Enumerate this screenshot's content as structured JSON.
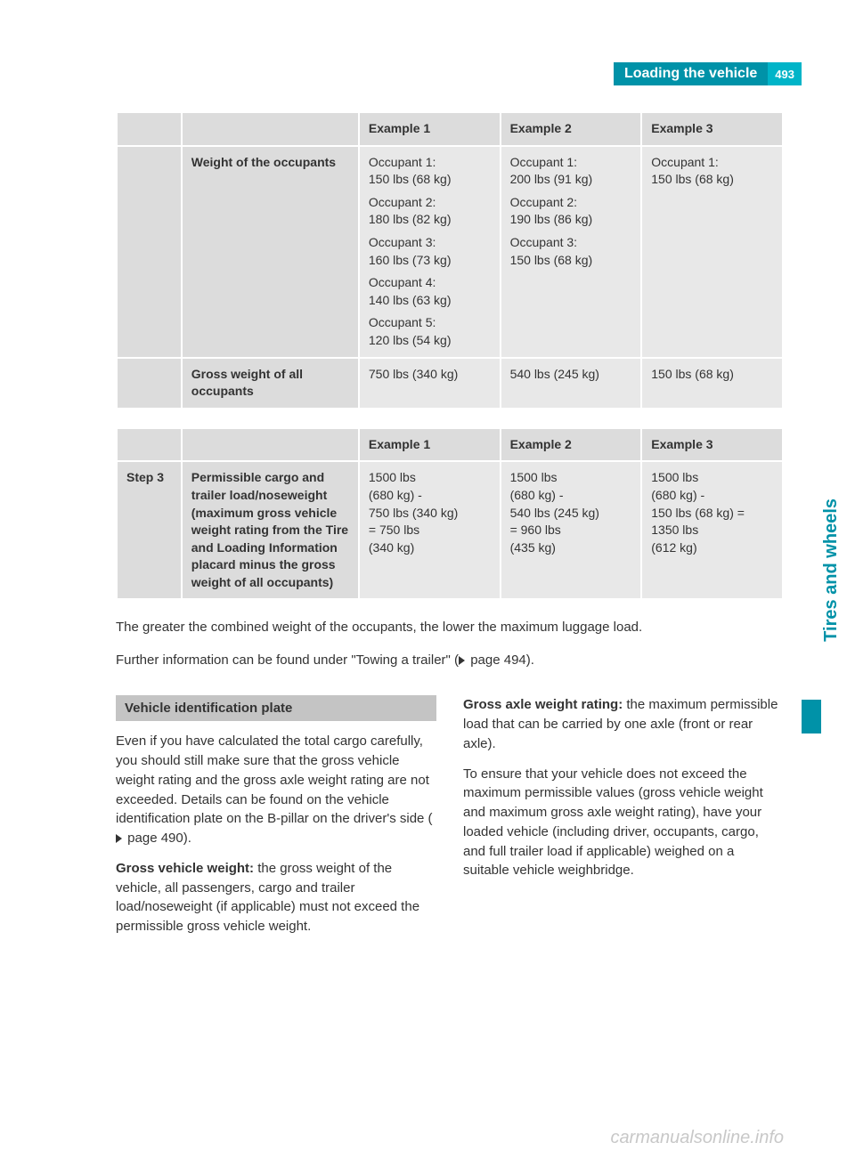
{
  "header": {
    "title": "Loading the vehicle",
    "page_number": "493"
  },
  "side_tab": "Tires and wheels",
  "table1": {
    "headers": [
      "",
      "",
      "Example 1",
      "Example 2",
      "Example 3"
    ],
    "rows": [
      {
        "step": "",
        "label": "Weight of the occupants",
        "ex1": [
          "Occupant 1:\n150 lbs (68 kg)",
          "Occupant 2:\n180 lbs (82 kg)",
          "Occupant 3:\n160 lbs (73 kg)",
          "Occupant 4:\n140 lbs (63 kg)",
          "Occupant 5:\n120 lbs (54 kg)"
        ],
        "ex2": [
          "Occupant 1:\n200 lbs (91 kg)",
          "Occupant 2:\n190 lbs (86 kg)",
          "Occupant 3:\n150 lbs (68 kg)"
        ],
        "ex3": [
          "Occupant 1:\n150 lbs (68 kg)"
        ]
      },
      {
        "step": "",
        "label": "Gross weight of all occupants",
        "ex1": "750 lbs (340 kg)",
        "ex2": "540 lbs (245 kg)",
        "ex3": "150 lbs (68 kg)"
      }
    ]
  },
  "table2": {
    "headers": [
      "",
      "",
      "Example 1",
      "Example 2",
      "Example 3"
    ],
    "row": {
      "step": "Step 3",
      "label": "Permissible cargo and trailer load/noseweight (maximum gross vehicle weight rating from the Tire and Loading Information placard minus the gross weight of all occupants)",
      "ex1": "1500 lbs\n(680 kg) -\n750 lbs (340 kg)\n= 750 lbs\n(340 kg)",
      "ex2": "1500 lbs\n(680 kg) -\n540 lbs (245 kg)\n= 960 lbs\n(435 kg)",
      "ex3": "1500 lbs\n(680 kg) -\n150 lbs (68 kg) =\n1350 lbs\n(612 kg)"
    }
  },
  "body": {
    "line1": "The greater the combined weight of the occupants, the lower the maximum luggage load.",
    "line2_pre": "Further information can be found under \"Towing a trailer\" (",
    "line2_ref": "page 494).",
    "section_heading": "Vehicle identification plate",
    "col1_p1_pre": "Even if you have calculated the total cargo carefully, you should still make sure that the gross vehicle weight rating and the gross axle weight rating are not exceeded. Details can be found on the vehicle identification plate on the B-pillar on the driver's side (",
    "col1_p1_ref": "page 490).",
    "col1_p2_bold": "Gross vehicle weight:",
    "col1_p2_rest": " the gross weight of the vehicle, all passengers, cargo and trailer load/noseweight (if applicable) must not exceed the permissible gross vehicle weight.",
    "col2_p1_bold": "Gross axle weight rating:",
    "col2_p1_rest": " the maximum permissible load that can be carried by one axle (front or rear axle).",
    "col2_p2": "To ensure that your vehicle does not exceed the maximum permissible values (gross vehicle weight and maximum gross axle weight rating), have your loaded vehicle (including driver, occupants, cargo, and full trailer load if applicable) weighed on a suitable vehicle weighbridge."
  },
  "watermark": "carmanualsonline.info"
}
